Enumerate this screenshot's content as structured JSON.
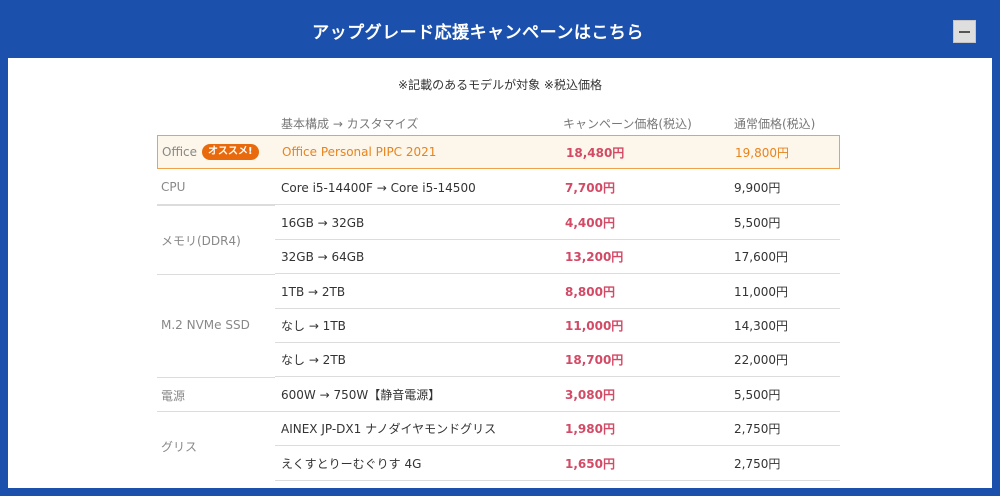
{
  "header": {
    "title": "アップグレード応援キャンペーンはこちら",
    "collapse_symbol": "—"
  },
  "note": "※記載のあるモデルが対象 ※税込価格",
  "columns": {
    "config": "基本構成 → カスタマイズ",
    "campaign": "キャンペーン価格(税込)",
    "regular": "通常価格(税込)"
  },
  "featured": {
    "category": "Office",
    "badge": "オススメ!",
    "config": "Office Personal PIPC 2021",
    "campaign_price": "18,480円",
    "regular_price": "19,800円"
  },
  "categories": {
    "cpu": "CPU",
    "memory": "メモリ(DDR4)",
    "ssd": "M.2 NVMe SSD",
    "power": "電源",
    "grease": "グリス"
  },
  "rows": [
    {
      "config": "Core i5-14400F → Core i5-14500",
      "campaign": "7,700円",
      "regular": "9,900円"
    },
    {
      "config": "16GB → 32GB",
      "campaign": "4,400円",
      "regular": "5,500円"
    },
    {
      "config": "32GB → 64GB",
      "campaign": "13,200円",
      "regular": "17,600円"
    },
    {
      "config": "1TB → 2TB",
      "campaign": "8,800円",
      "regular": "11,000円"
    },
    {
      "config": "なし → 1TB",
      "campaign": "11,000円",
      "regular": "14,300円"
    },
    {
      "config": "なし → 2TB",
      "campaign": "18,700円",
      "regular": "22,000円"
    },
    {
      "config": "600W → 750W【静音電源】",
      "campaign": "3,080円",
      "regular": "5,500円"
    },
    {
      "config": "AINEX JP-DX1 ナノダイヤモンドグリス",
      "campaign": "1,980円",
      "regular": "2,750円"
    },
    {
      "config": "えくすとりーむぐりす 4G",
      "campaign": "1,650円",
      "regular": "2,750円"
    }
  ]
}
